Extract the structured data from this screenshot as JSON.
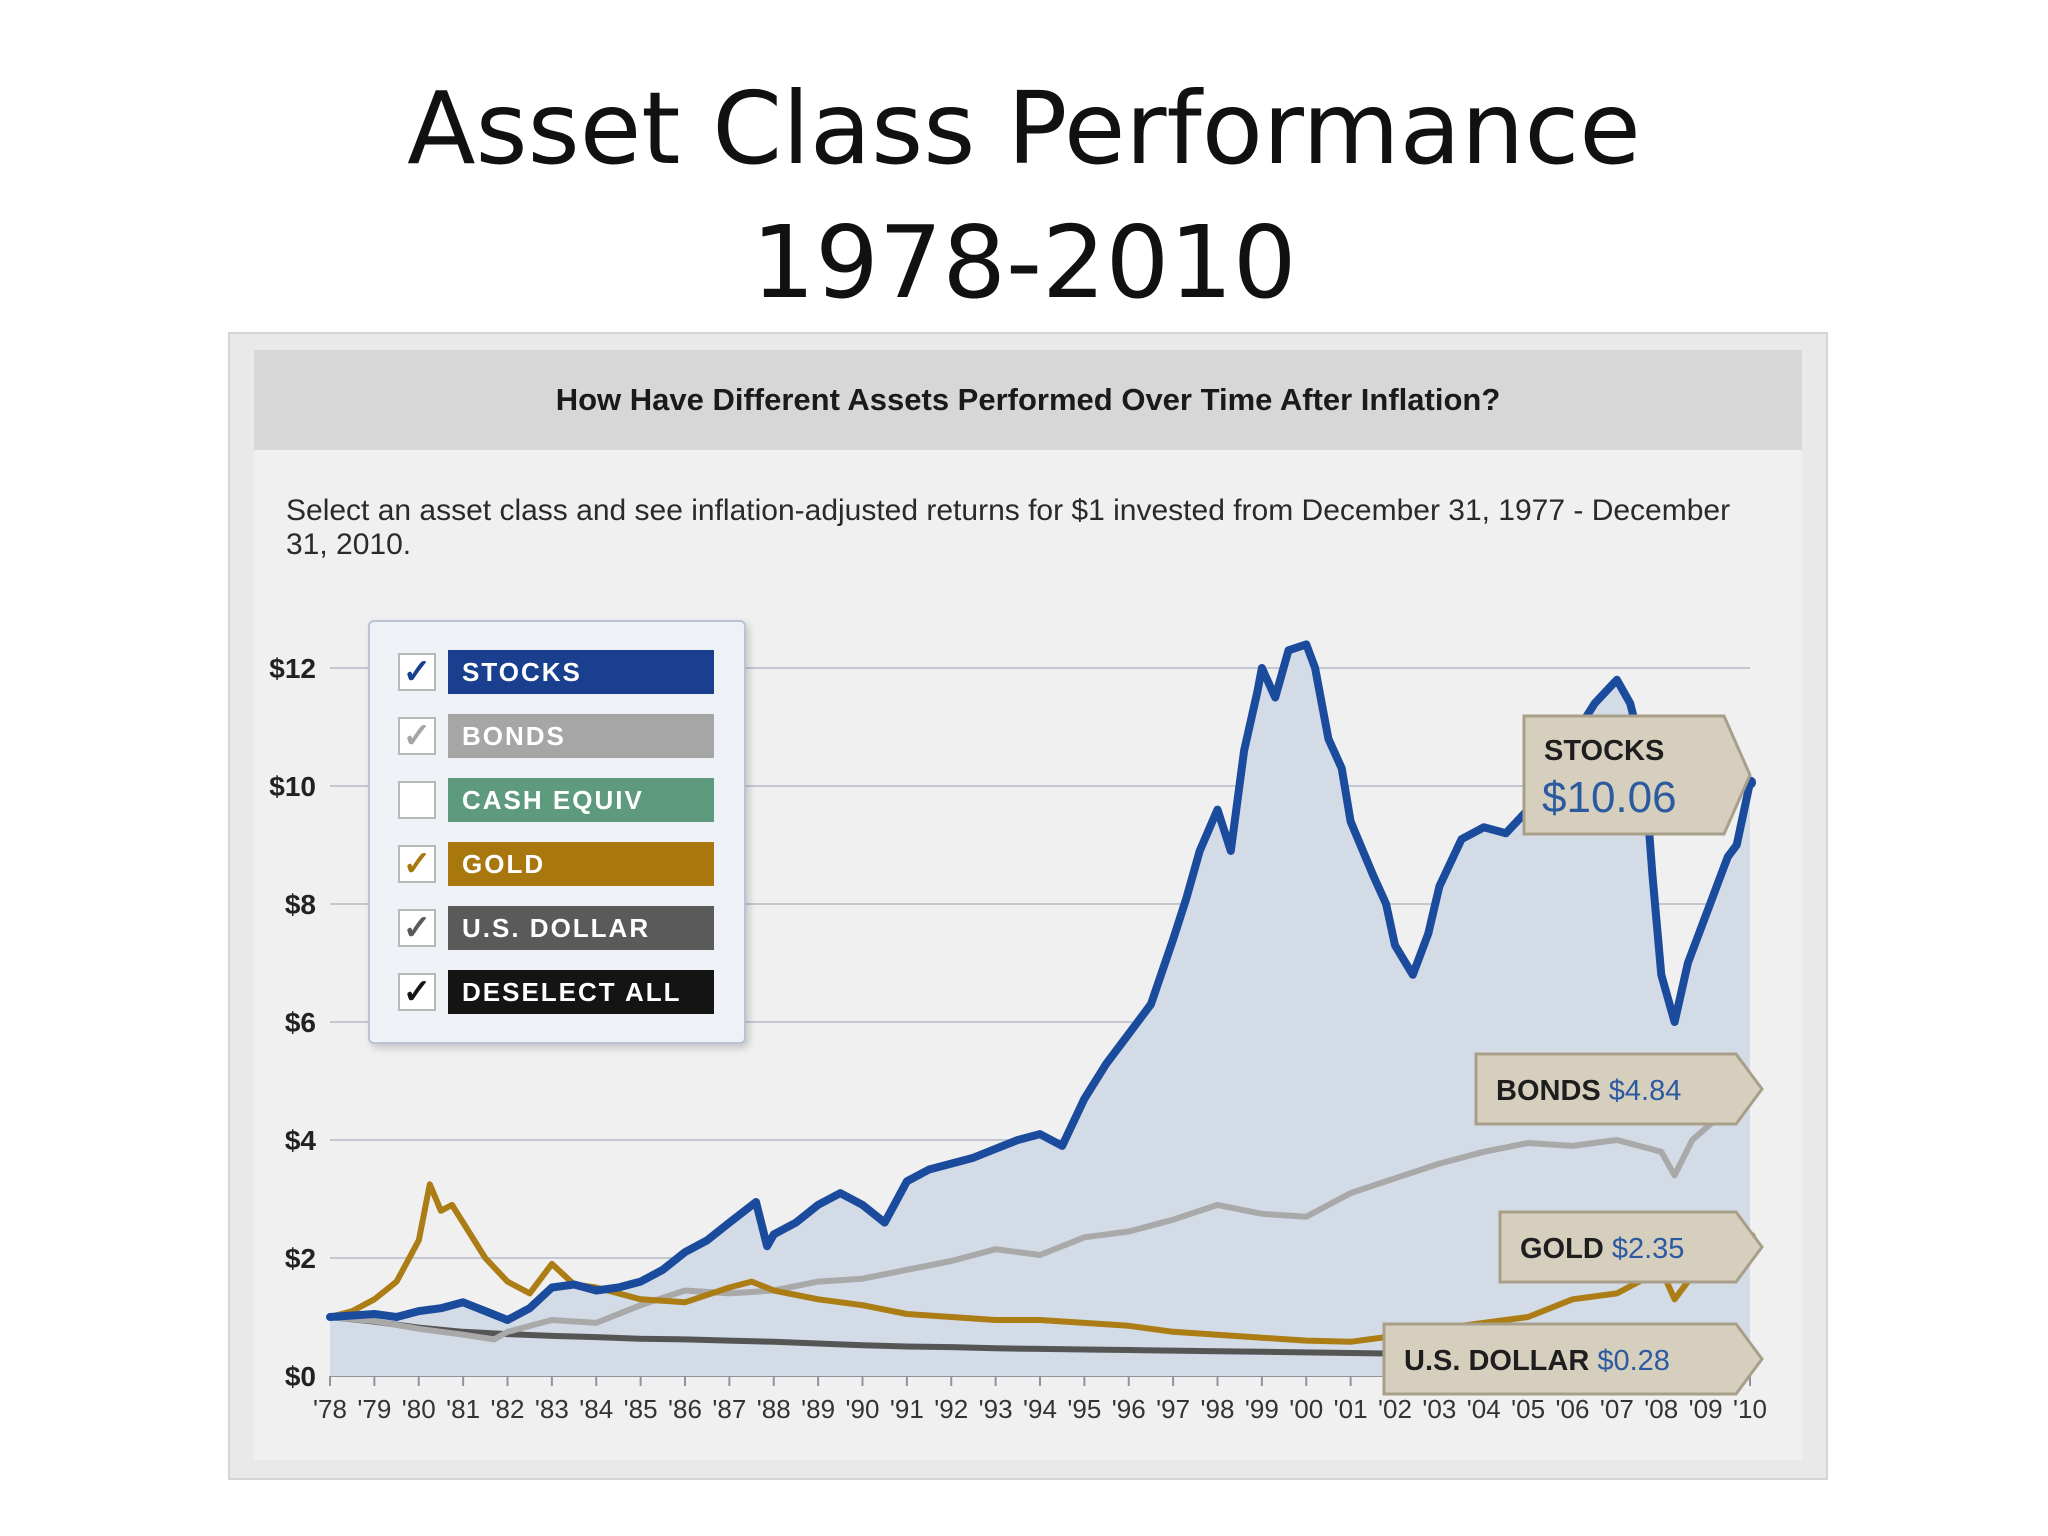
{
  "slide": {
    "title_line1": "Asset Class Performance",
    "title_line2": "1978-2010"
  },
  "panel": {
    "header": "How Have Different Assets Performed Over Time After Inflation?",
    "intro": "Select an asset class and see  inflation-adjusted returns for $1 invested from December 31, 1977 - December 31, 2010."
  },
  "legend": {
    "items": [
      {
        "label": "STOCKS",
        "checked": true,
        "color": "#1b3f8f",
        "check_color": "#1b3f8f"
      },
      {
        "label": "BONDS",
        "checked": true,
        "color": "#a6a6a6",
        "check_color": "#a6a6a6"
      },
      {
        "label": "CASH EQUIV",
        "checked": false,
        "color": "#5e9a7e",
        "check_color": "#5e9a7e"
      },
      {
        "label": "GOLD",
        "checked": true,
        "color": "#a8770e",
        "check_color": "#a8770e"
      },
      {
        "label": "U.S. DOLLAR",
        "checked": true,
        "color": "#5a5a5a",
        "check_color": "#5a5a5a"
      },
      {
        "label": "DESELECT ALL",
        "checked": true,
        "color": "#141414",
        "check_color": "#141414"
      }
    ]
  },
  "chart_data": {
    "type": "line",
    "xlim": [
      1978,
      2010
    ],
    "ylim": [
      0,
      12
    ],
    "y_ticks": [
      0,
      2,
      4,
      6,
      8,
      10,
      12
    ],
    "y_tick_labels": [
      "$0",
      "$2",
      "$4",
      "$6",
      "$8",
      "$10",
      "$12"
    ],
    "x_ticks": [
      1978,
      1979,
      1980,
      1981,
      1982,
      1983,
      1984,
      1985,
      1986,
      1987,
      1988,
      1989,
      1990,
      1991,
      1992,
      1993,
      1994,
      1995,
      1996,
      1997,
      1998,
      1999,
      2000,
      2001,
      2002,
      2003,
      2004,
      2005,
      2006,
      2007,
      2008,
      2009,
      2010
    ],
    "x_tick_labels": [
      "'78",
      "'79",
      "'80",
      "'81",
      "'82",
      "'83",
      "'84",
      "'85",
      "'86",
      "'87",
      "'88",
      "'89",
      "'90",
      "'91",
      "'92",
      "'93",
      "'94",
      "'95",
      "'96",
      "'97",
      "'98",
      "'99",
      "'00",
      "'01",
      "'02",
      "'03",
      "'04",
      "'05",
      "'06",
      "'07",
      "'08",
      "'09",
      "'10"
    ],
    "grid": true,
    "series": [
      {
        "name": "STOCKS",
        "color": "#1b4b9c",
        "fill": "#d3dbe7",
        "x": [
          1978,
          1979,
          1979.5,
          1980,
          1980.5,
          1981,
          1981.5,
          1982,
          1982.5,
          1983,
          1983.5,
          1984,
          1984.5,
          1985,
          1985.5,
          1986,
          1986.5,
          1987,
          1987.6,
          1987.85,
          1988,
          1988.5,
          1989,
          1989.5,
          1990,
          1990.5,
          1991,
          1991.5,
          1992,
          1992.5,
          1993,
          1993.5,
          1994,
          1994.5,
          1995,
          1995.5,
          1996,
          1996.5,
          1997,
          1997.3,
          1997.6,
          1998,
          1998.3,
          1998.6,
          1998.9,
          1999,
          1999.3,
          1999.6,
          2000,
          2000.2,
          2000.5,
          2000.8,
          2001,
          2001.5,
          2001.8,
          2002,
          2002.4,
          2002.75,
          2003,
          2003.5,
          2004,
          2004.5,
          2005,
          2005.5,
          2006,
          2006.5,
          2007,
          2007.3,
          2007.6,
          2007.8,
          2008,
          2008.3,
          2008.6,
          2008.9,
          2009.1,
          2009.3,
          2009.5,
          2009.7,
          2010
        ],
        "y": [
          1.0,
          1.05,
          1.0,
          1.1,
          1.15,
          1.25,
          1.1,
          0.95,
          1.15,
          1.5,
          1.55,
          1.45,
          1.5,
          1.6,
          1.8,
          2.1,
          2.3,
          2.6,
          2.95,
          2.2,
          2.4,
          2.6,
          2.9,
          3.1,
          2.9,
          2.6,
          3.3,
          3.5,
          3.6,
          3.7,
          3.85,
          4.0,
          4.1,
          3.9,
          4.7,
          5.3,
          5.8,
          6.3,
          7.4,
          8.1,
          8.9,
          9.6,
          8.9,
          10.6,
          11.6,
          12.0,
          11.5,
          12.3,
          12.4,
          12.0,
          10.8,
          10.3,
          9.4,
          8.5,
          8.0,
          7.3,
          6.8,
          7.5,
          8.3,
          9.1,
          9.3,
          9.2,
          9.6,
          9.9,
          10.8,
          11.4,
          11.8,
          11.4,
          10.5,
          8.5,
          6.8,
          6.0,
          7.0,
          7.6,
          8.0,
          8.4,
          8.8,
          9.0,
          10.06
        ],
        "end_label": "STOCKS",
        "end_value": "$10.06"
      },
      {
        "name": "BONDS",
        "color": "#a9a9a9",
        "x": [
          1978,
          1979,
          1980,
          1981,
          1981.7,
          1982,
          1983,
          1984,
          1985,
          1986,
          1987,
          1988,
          1989,
          1990,
          1991,
          1992,
          1993,
          1994,
          1995,
          1996,
          1997,
          1998,
          1999,
          2000,
          2001,
          2002,
          2003,
          2004,
          2005,
          2006,
          2007,
          2007.5,
          2008,
          2008.3,
          2008.7,
          2009,
          2010
        ],
        "y": [
          1.0,
          0.93,
          0.8,
          0.7,
          0.62,
          0.75,
          0.95,
          0.9,
          1.2,
          1.45,
          1.4,
          1.45,
          1.6,
          1.65,
          1.8,
          1.95,
          2.15,
          2.05,
          2.35,
          2.45,
          2.65,
          2.9,
          2.75,
          2.7,
          3.1,
          3.35,
          3.6,
          3.8,
          3.95,
          3.9,
          4.0,
          3.9,
          3.8,
          3.4,
          4.0,
          4.2,
          4.84
        ],
        "end_label": "BONDS",
        "end_value": "$4.84"
      },
      {
        "name": "GOLD",
        "color": "#ab7d14",
        "x": [
          1978,
          1978.5,
          1979,
          1979.5,
          1980,
          1980.25,
          1980.5,
          1980.75,
          1981,
          1981.5,
          1982,
          1982.5,
          1983,
          1983.5,
          1984,
          1985,
          1986,
          1987,
          1987.5,
          1988,
          1989,
          1990,
          1991,
          1992,
          1993,
          1994,
          1995,
          1996,
          1997,
          1998,
          1999,
          2000,
          2001,
          2002,
          2003,
          2004,
          2005,
          2006,
          2007,
          2007.5,
          2008,
          2008.3,
          2008.6,
          2009,
          2009.5,
          2010
        ],
        "y": [
          1.0,
          1.1,
          1.3,
          1.6,
          2.3,
          3.25,
          2.8,
          2.9,
          2.6,
          2.0,
          1.6,
          1.4,
          1.9,
          1.55,
          1.5,
          1.3,
          1.25,
          1.5,
          1.6,
          1.45,
          1.3,
          1.2,
          1.05,
          1.0,
          0.95,
          0.95,
          0.9,
          0.85,
          0.75,
          0.7,
          0.65,
          0.6,
          0.58,
          0.68,
          0.8,
          0.9,
          1.0,
          1.3,
          1.4,
          1.6,
          1.8,
          1.3,
          1.6,
          1.9,
          2.1,
          2.35
        ],
        "end_label": "GOLD",
        "end_value": "$2.35"
      },
      {
        "name": "U.S. DOLLAR",
        "color": "#555555",
        "x": [
          1978,
          1979,
          1980,
          1981,
          1982,
          1983,
          1984,
          1985,
          1986,
          1987,
          1988,
          1989,
          1990,
          1991,
          1992,
          1993,
          1994,
          1995,
          1996,
          1997,
          1998,
          1999,
          2000,
          2001,
          2002,
          2003,
          2004,
          2005,
          2006,
          2007,
          2008,
          2009,
          2010
        ],
        "y": [
          1.0,
          0.92,
          0.82,
          0.75,
          0.71,
          0.68,
          0.66,
          0.63,
          0.62,
          0.6,
          0.58,
          0.55,
          0.52,
          0.5,
          0.49,
          0.47,
          0.46,
          0.45,
          0.44,
          0.43,
          0.42,
          0.41,
          0.4,
          0.39,
          0.38,
          0.37,
          0.36,
          0.35,
          0.34,
          0.33,
          0.32,
          0.31,
          0.28
        ],
        "end_label": "U.S. DOLLAR",
        "end_value": "$0.28"
      }
    ]
  }
}
